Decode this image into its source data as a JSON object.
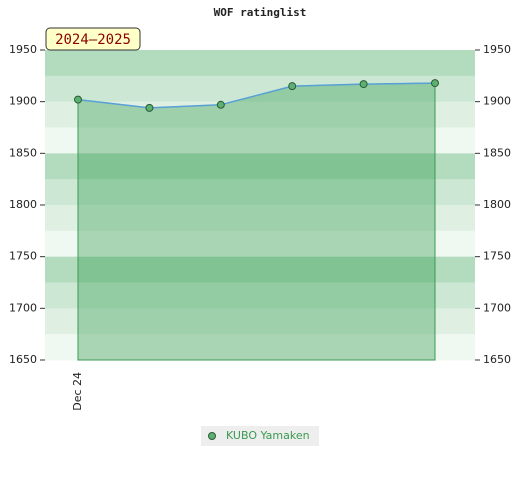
{
  "chart_data": {
    "type": "area",
    "title": "WOF ratinglist",
    "badge": "2024–2025",
    "categories": [
      "Dec 24",
      null,
      null,
      null,
      null,
      null
    ],
    "series": [
      {
        "name": "KUBO Yamaken",
        "color": "#5aa0d8",
        "marker_color": "#5cb071",
        "values": [
          1902,
          1894,
          1897,
          1915,
          1917,
          1918
        ]
      }
    ],
    "ylim": [
      1650,
      1950
    ],
    "yticks": [
      1650,
      1700,
      1750,
      1800,
      1850,
      1900,
      1950
    ],
    "right_axis": true
  }
}
